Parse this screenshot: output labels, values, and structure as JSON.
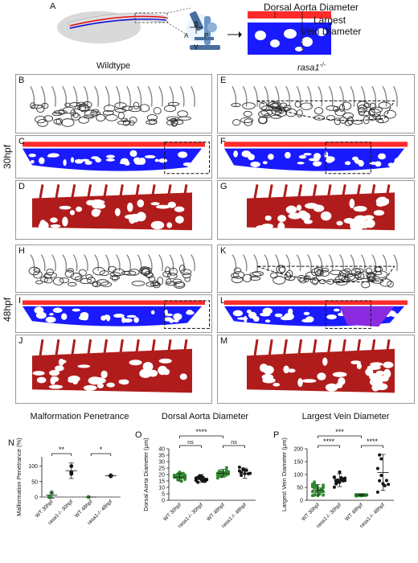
{
  "panel_letters": [
    "A",
    "B",
    "C",
    "D",
    "E",
    "F",
    "G",
    "H",
    "I",
    "J",
    "K",
    "L",
    "M",
    "N",
    "O",
    "P"
  ],
  "schematic": {
    "label_dorsal_aorta": "Dorsal Aorta Diameter",
    "label_largest": "Largest",
    "label_vein": "Vein Diameter",
    "compass": {
      "d": "D",
      "v": "V",
      "a": "A",
      "p": "P"
    }
  },
  "columns": {
    "left": "Wildtype",
    "right": "rasa1",
    "right_sup": "-/-"
  },
  "stages": {
    "top": "30hpf",
    "bottom": "48hpf"
  },
  "colors": {
    "artery": "#ff2a2a",
    "vein": "#1a1aff",
    "render": "#b01c1c",
    "malformation": "#8a2be2",
    "wt_green": "#2e8b2e",
    "mut_black": "#111111"
  },
  "chart_data": [
    {
      "type": "scatter",
      "title": "Malformation Penetrance",
      "ylabel": "Malformation Penetrance (%)",
      "categories": [
        "WT 30hpf",
        "rasa1-/- 30hpf",
        "WT 48hpf",
        "rasa1-/- 48hpf"
      ],
      "ylim": [
        0,
        130
      ],
      "yticks": [
        0,
        50,
        100
      ],
      "points": [
        [
          0,
          0,
          0
        ],
        [
          0,
          0,
          0
        ],
        [
          0,
          17,
          0
        ],
        [
          1,
          75,
          1
        ],
        [
          1,
          100,
          1
        ],
        [
          1,
          80,
          1
        ],
        [
          2,
          0,
          0
        ],
        [
          2,
          0,
          0
        ],
        [
          3,
          67,
          1
        ],
        [
          3,
          70,
          1
        ]
      ],
      "means": [
        6,
        85,
        0,
        69
      ],
      "sd": [
        10,
        25,
        0,
        2
      ],
      "significance": [
        {
          "from": 0,
          "to": 1,
          "label": "**"
        },
        {
          "from": 2,
          "to": 3,
          "label": "*"
        }
      ]
    },
    {
      "type": "scatter",
      "title": "Dorsal Aorta Diameter",
      "ylabel": "Dorsal Aorta Diameter (µm)",
      "categories": [
        "WT 30hpf",
        "rasa1-/- 30hpf",
        "WT 48hpf",
        "rasa1-/- 48hpf"
      ],
      "ylim": [
        0,
        40
      ],
      "yticks": [
        0,
        5,
        10,
        15,
        20,
        25,
        30,
        35,
        40
      ],
      "means": [
        18,
        17,
        21,
        21
      ],
      "sd": [
        3,
        3,
        3,
        4
      ],
      "significance": [
        {
          "from": 0,
          "to": 1,
          "label": "ns"
        },
        {
          "from": 2,
          "to": 3,
          "label": "ns"
        },
        {
          "from": 0,
          "to": 2,
          "label": "****"
        }
      ]
    },
    {
      "type": "scatter",
      "title": "Largest Vein Diameter",
      "ylabel": "Largest Vein Diameter (µm)",
      "categories": [
        "WT 30hpf",
        "rasa1-/- 30hpf",
        "WT 48hpf",
        "rasa1-/- 48hpf"
      ],
      "ylim": [
        0,
        200
      ],
      "yticks": [
        0,
        50,
        100,
        150,
        200
      ],
      "means": [
        40,
        78,
        20,
        108
      ],
      "sd": [
        20,
        25,
        3,
        70
      ],
      "significance": [
        {
          "from": 0,
          "to": 1,
          "label": "****"
        },
        {
          "from": 2,
          "to": 3,
          "label": "****"
        },
        {
          "from": 0,
          "to": 2,
          "label": "***"
        }
      ]
    }
  ]
}
